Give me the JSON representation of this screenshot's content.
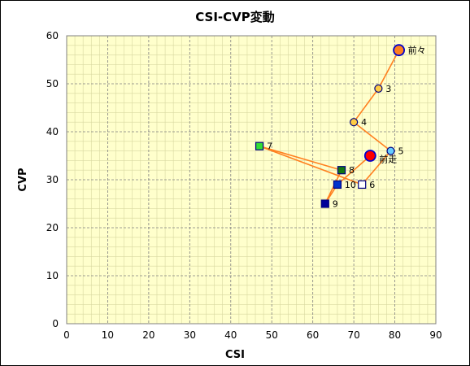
{
  "chart_data": {
    "type": "scatter",
    "title": "CSI-CVP変動",
    "xlabel": "CSI",
    "ylabel": "CVP",
    "xlim": [
      0,
      90
    ],
    "ylim": [
      0,
      60
    ],
    "xticks": [
      0,
      10,
      20,
      30,
      40,
      50,
      60,
      70,
      80,
      90
    ],
    "yticks": [
      0,
      10,
      20,
      30,
      40,
      50,
      60
    ],
    "grid": true,
    "plot_background": "#ffffcc",
    "line_color": "#ff8020",
    "points": [
      {
        "label": "前々",
        "x": 81,
        "y": 57,
        "shape": "circle",
        "size": "large",
        "fill": "#ff8020",
        "stroke": "#0000cc"
      },
      {
        "label": "3",
        "x": 76,
        "y": 49,
        "shape": "circle",
        "size": "small",
        "fill": "#ffcc44",
        "stroke": "#000080"
      },
      {
        "label": "4",
        "x": 70,
        "y": 42,
        "shape": "circle",
        "size": "small",
        "fill": "#ffcc44",
        "stroke": "#000080"
      },
      {
        "label": "5",
        "x": 79,
        "y": 36,
        "shape": "circle",
        "size": "small",
        "fill": "#66ccff",
        "stroke": "#000080"
      },
      {
        "label": "6",
        "x": 72,
        "y": 29,
        "shape": "square",
        "size": "small",
        "fill": "#ffffff",
        "stroke": "#000080"
      },
      {
        "label": "7",
        "x": 47,
        "y": 37,
        "shape": "square",
        "size": "small",
        "fill": "#33dd33",
        "stroke": "#000080"
      },
      {
        "label": "8",
        "x": 67,
        "y": 32,
        "shape": "square",
        "size": "small",
        "fill": "#117711",
        "stroke": "#000080"
      },
      {
        "label": "9",
        "x": 63,
        "y": 25,
        "shape": "square",
        "size": "small",
        "fill": "#000099",
        "stroke": "#000080"
      },
      {
        "label": "10",
        "x": 66,
        "y": 29,
        "shape": "square",
        "size": "small",
        "fill": "#0033cc",
        "stroke": "#000080"
      },
      {
        "label": "前走",
        "x": 74,
        "y": 35,
        "shape": "circle",
        "size": "large",
        "fill": "#ff0000",
        "stroke": "#0000cc"
      }
    ],
    "path_order": [
      "前々",
      "3",
      "4",
      "5",
      "6",
      "7",
      "8",
      "9",
      "10",
      "前走"
    ]
  }
}
